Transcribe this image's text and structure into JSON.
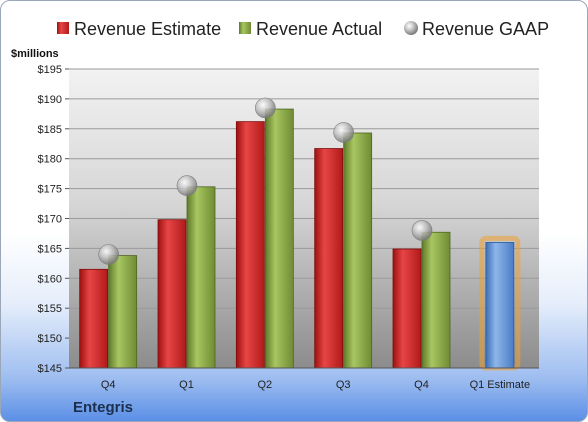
{
  "company": "Entegris",
  "chart_data": {
    "type": "bar",
    "ylabel": "$millions",
    "ylim": [
      145,
      195
    ],
    "ytick_step": 5,
    "ytick_labels": [
      "$145",
      "$150",
      "$155",
      "$160",
      "$165",
      "$170",
      "$175",
      "$180",
      "$185",
      "$190",
      "$195"
    ],
    "categories": [
      "Q4",
      "Q1",
      "Q2",
      "Q3",
      "Q4",
      "Q1 Estimate"
    ],
    "legend_position": "top",
    "grid": true,
    "series": [
      {
        "name": "Revenue Estimate",
        "type": "bar",
        "color": "#d42a2a",
        "values": [
          161.5,
          169.8,
          186.2,
          181.7,
          164.9,
          null
        ]
      },
      {
        "name": "Revenue Actual",
        "type": "bar",
        "color": "#8fad4a",
        "values": [
          163.8,
          175.3,
          188.3,
          184.3,
          167.7,
          null
        ]
      },
      {
        "name": "Revenue GAAP",
        "type": "scatter",
        "color": "#a8a8a8",
        "values": [
          164.0,
          175.5,
          188.5,
          184.4,
          168.0,
          null
        ]
      },
      {
        "name": "",
        "type": "bar",
        "color": "#5f93d8",
        "highlight": "#f0a030",
        "values": [
          null,
          null,
          null,
          null,
          null,
          166.0
        ]
      }
    ]
  }
}
